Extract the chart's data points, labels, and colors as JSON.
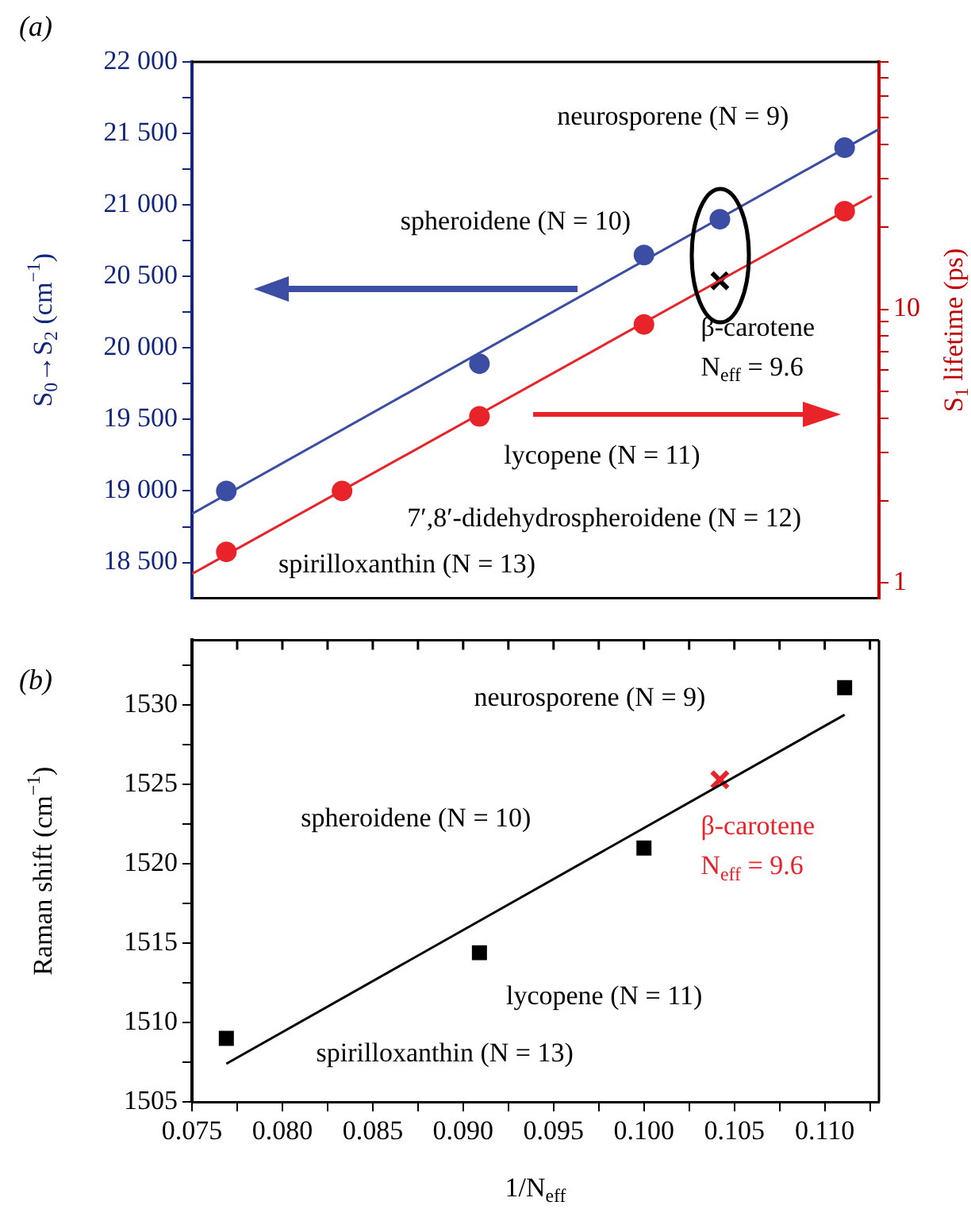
{
  "chart_data": [
    {
      "type": "scatter",
      "title": "(a)",
      "ylabel": "S$_{0}$→S$_{2}$ (cm$^{−1}$)",
      "y2label": "S$_{1}$ lifetime (ps)",
      "xlim": [
        0.075,
        0.113
      ],
      "ylim": [
        18250,
        22000
      ],
      "yticks": [
        {
          "value": 18500,
          "label": "18 500"
        },
        {
          "value": 18750,
          "label": null
        },
        {
          "value": 19000,
          "label": "19 000"
        },
        {
          "value": 19250,
          "label": null
        },
        {
          "value": 19500,
          "label": "19 500"
        },
        {
          "value": 19750,
          "label": null
        },
        {
          "value": 20000,
          "label": "20 000"
        },
        {
          "value": 20250,
          "label": null
        },
        {
          "value": 20500,
          "label": "20 500"
        },
        {
          "value": 20750,
          "label": null
        },
        {
          "value": 21000,
          "label": "21 000"
        },
        {
          "value": 21250,
          "label": null
        },
        {
          "value": 21500,
          "label": "21 500"
        },
        {
          "value": 21750,
          "label": null
        },
        {
          "value": 22000,
          "label": "22 000"
        }
      ],
      "y2lim": [
        0.88,
        80
      ],
      "log": "y2",
      "y2ticks": [
        1,
        {
          "value": 2,
          "label": null
        },
        {
          "value": 3,
          "label": null
        },
        {
          "value": 4,
          "label": null
        },
        {
          "value": 5,
          "label": null
        },
        {
          "value": 6,
          "label": null
        },
        {
          "value": 7,
          "label": null
        },
        {
          "value": 8,
          "label": null
        },
        {
          "value": 9,
          "label": null
        },
        10,
        {
          "value": 20,
          "label": null
        },
        {
          "value": 30,
          "label": null
        },
        {
          "value": 40,
          "label": null
        },
        {
          "value": 50,
          "label": null
        },
        {
          "value": 60,
          "label": null
        },
        {
          "value": 70,
          "label": null
        },
        {
          "value": 80,
          "label": null
        }
      ],
      "tick_labels": [
        "y",
        "y2"
      ],
      "series": [
        {
          "color": "#3b4ea3",
          "marker": "circle",
          "x": [
            0.0769,
            0.0909,
            0.1,
            0.1042,
            0.1111
          ],
          "values": [
            19000,
            19890,
            20650,
            20900,
            21400
          ]
        },
        {
          "type": "line",
          "color": "#3b4ea3",
          "marker": "none",
          "x": [
            0.075,
            0.113
          ],
          "values": [
            18840,
            21530
          ]
        },
        {
          "color": "#e8232a",
          "marker": "circle",
          "axis": "y2",
          "x": [
            0.0769,
            0.0833,
            0.0909,
            0.1,
            0.1111
          ],
          "values": [
            1.3,
            2.17,
            4.06,
            8.8,
            22.8
          ]
        },
        {
          "type": "line",
          "color": "#e8232a",
          "marker": "none",
          "axis": "y2",
          "x": [
            0.075,
            0.1126
          ],
          "values": [
            1.08,
            25.9
          ]
        },
        {
          "name": "β-carotene N$_{eff}$ = 9.6",
          "color": "#000000",
          "marker": "cross",
          "axis": "y2",
          "x": [
            0.1042
          ],
          "values": [
            12.7
          ]
        }
      ],
      "annotations": [
        "neurosporene (N = 9)",
        "spheroidene (N = 10)",
        "lycopene (N = 11)",
        "7′,8′-didehydrospheroidene (N = 12)",
        "spirilloxanthin (N = 13)"
      ]
    },
    {
      "type": "scatter",
      "title": "(b)",
      "xlabel": "1/N$_{eff}$",
      "ylabel": "Raman shift (cm$^{−1}$)",
      "xlim": [
        0.075,
        0.113
      ],
      "ylim": [
        1505,
        1534.1
      ],
      "xticks": [
        {
          "value": 0.075,
          "label": "0.075"
        },
        {
          "value": 0.0775,
          "label": null
        },
        {
          "value": 0.08,
          "label": "0.080"
        },
        {
          "value": 0.0825,
          "label": null
        },
        {
          "value": 0.085,
          "label": "0.085"
        },
        {
          "value": 0.0875,
          "label": null
        },
        {
          "value": 0.09,
          "label": "0.090"
        },
        {
          "value": 0.0925,
          "label": null
        },
        {
          "value": 0.095,
          "label": "0.095"
        },
        {
          "value": 0.0975,
          "label": null
        },
        {
          "value": 0.1,
          "label": "0.100"
        },
        {
          "value": 0.1025,
          "label": null
        },
        {
          "value": 0.105,
          "label": "0.105"
        },
        {
          "value": 0.1075,
          "label": null
        },
        {
          "value": 0.11,
          "label": "0.110"
        },
        {
          "value": 0.1125,
          "label": null
        }
      ],
      "yticks": [
        1505,
        {
          "value": 1507.5,
          "label": null
        },
        1510,
        {
          "value": 1512.5,
          "label": null
        },
        1515,
        {
          "value": 1517.5,
          "label": null
        },
        1520,
        {
          "value": 1522.5,
          "label": null
        },
        1525,
        {
          "value": 1527.5,
          "label": null
        },
        1530,
        {
          "value": 1532.5,
          "label": null
        }
      ],
      "series": [
        {
          "color": "#000000",
          "marker": "square",
          "x": [
            0.0769,
            0.0909,
            0.1,
            0.1111
          ],
          "values": [
            1509.0,
            1514.4,
            1521.0,
            1531.1
          ]
        },
        {
          "type": "line",
          "color": "#000000",
          "marker": "none",
          "x": [
            0.0769,
            0.1111
          ],
          "values": [
            1507.4,
            1529.4
          ]
        },
        {
          "name": "β-carotene N$_{eff}$ = 9.6",
          "color": "#e8232a",
          "marker": "cross",
          "x": [
            0.1042
          ],
          "values": [
            1525.3
          ]
        }
      ],
      "annotations": [
        "neurosporene (N = 9)",
        "spheroidene (N = 10)",
        "lycopene (N = 11)",
        "spirilloxanthin (N = 13)"
      ]
    }
  ]
}
